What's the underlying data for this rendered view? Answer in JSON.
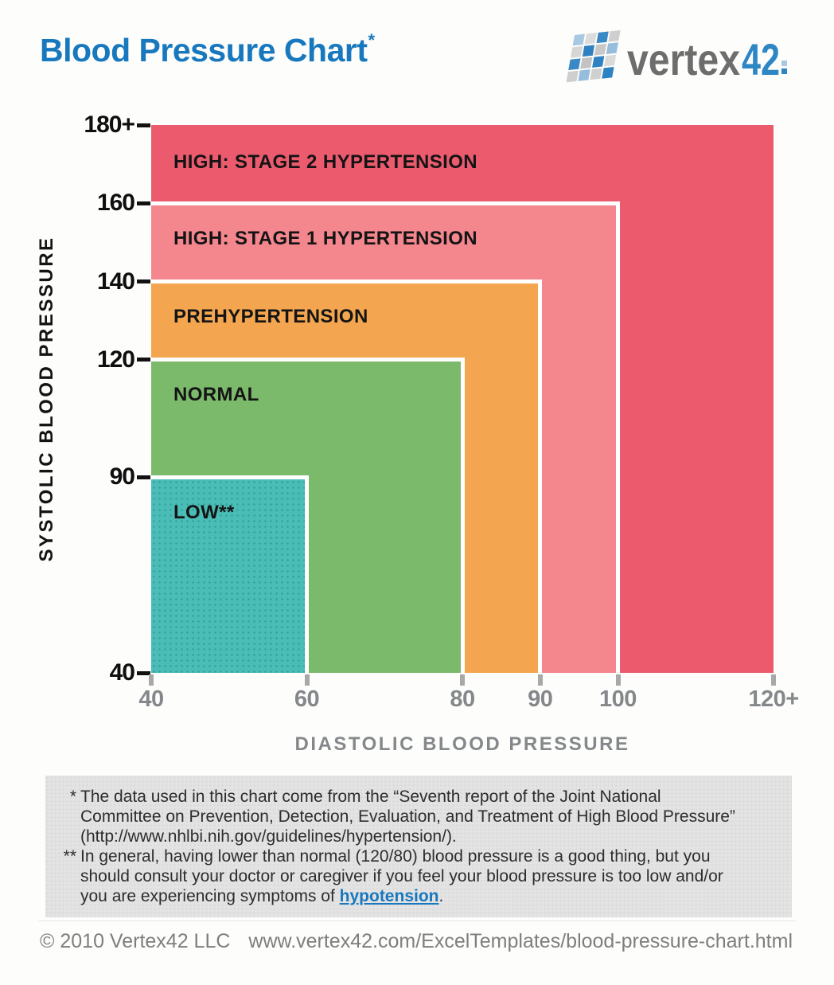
{
  "header": {
    "title": "Blood Pressure Chart",
    "title_superscript": "*",
    "logo": {
      "brand_gray": "vertex",
      "brand_blue": "42"
    }
  },
  "chart_data": {
    "type": "area",
    "subtype": "nested-threshold-zone-rectangles",
    "title": "Blood Pressure Chart",
    "xlabel": "DIASTOLIC BLOOD PRESSURE",
    "ylabel": "SYSTOLIC BLOOD PRESSURE",
    "xlim": [
      40,
      120
    ],
    "ylim": [
      40,
      180
    ],
    "grid": false,
    "legend": "labels-inside-zones",
    "x_ticks": [
      {
        "v": 40,
        "label": "40"
      },
      {
        "v": 60,
        "label": "60"
      },
      {
        "v": 80,
        "label": "80"
      },
      {
        "v": 90,
        "label": "90"
      },
      {
        "v": 100,
        "label": "100"
      },
      {
        "v": 120,
        "label": "120+"
      }
    ],
    "y_ticks": [
      {
        "v": 180,
        "label": "180+"
      },
      {
        "v": 160,
        "label": "160"
      },
      {
        "v": 140,
        "label": "140"
      },
      {
        "v": 120,
        "label": "120"
      },
      {
        "v": 90,
        "label": "90"
      },
      {
        "v": 40,
        "label": "40"
      }
    ],
    "zones": [
      {
        "id": "high-stage-2-hypertension",
        "label": "HIGH: STAGE 2 HYPERTENSION",
        "systolic_max": 180,
        "diastolic_max": 120,
        "systolic_range": "160 to 180+",
        "diastolic_range": "100 to 120+",
        "color": "#EC5A6E"
      },
      {
        "id": "high-stage-1-hypertension",
        "label": "HIGH: STAGE 1 HYPERTENSION",
        "systolic_max": 160,
        "diastolic_max": 100,
        "systolic_range": "140 to 160",
        "diastolic_range": "90 to 100",
        "color": "#F4868E"
      },
      {
        "id": "prehypertension",
        "label": "PREHYPERTENSION",
        "systolic_max": 140,
        "diastolic_max": 90,
        "systolic_range": "120 to 140",
        "diastolic_range": "80 to 90",
        "color": "#F3A64F"
      },
      {
        "id": "normal",
        "label": "NORMAL",
        "systolic_max": 120,
        "diastolic_max": 80,
        "systolic_range": "90 to 120",
        "diastolic_range": "60 to 80",
        "color": "#7CBA6B"
      },
      {
        "id": "low",
        "label": "LOW**",
        "systolic_max": 90,
        "diastolic_max": 60,
        "systolic_range": "40 to 90",
        "diastolic_range": "40 to 60",
        "color": "#49BDB6",
        "pattern": "dots"
      }
    ]
  },
  "footnotes": {
    "note1": {
      "marker": "*",
      "text": "The data used in this chart come from the “Seventh report of the Joint National Committee on Prevention, Detection, Evaluation, and Treatment of High Blood Pressure” (http://www.nhlbi.nih.gov/guidelines/hypertension/)."
    },
    "note2": {
      "marker": "**",
      "text_before_link": "In general, having lower than normal (120/80) blood pressure is a good thing, but you should consult your doctor or caregiver if you feel your blood pressure is too low and/or you are experiencing symptoms of ",
      "link_text": "hypotension",
      "text_after_link": "."
    }
  },
  "footer": {
    "copyright": "© 2010 Vertex42 LLC",
    "url": "www.vertex42.com/ExcelTemplates/blood-pressure-chart.html"
  },
  "colors": {
    "title_blue": "#1878be",
    "stage2_red": "#EC5A6E",
    "stage1_salmon": "#F4868E",
    "prehypertension_orange": "#F3A64F",
    "normal_green": "#7CBA6B",
    "low_teal": "#49BDB6",
    "axis_gray": "#85888b",
    "footnote_box_gray": "#e3e3e3"
  }
}
